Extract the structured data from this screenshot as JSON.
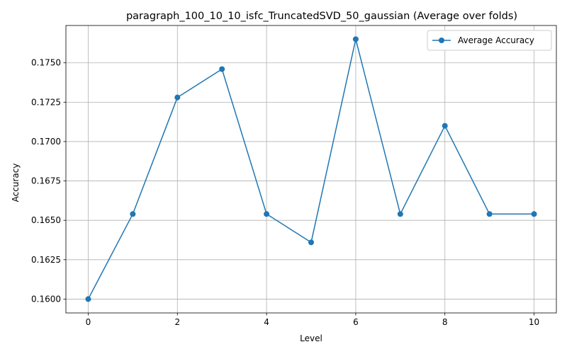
{
  "chart_data": {
    "type": "line",
    "title": "paragraph_100_10_10_isfc_TruncatedSVD_50_gaussian (Average over folds)",
    "xlabel": "Level",
    "ylabel": "Accuracy",
    "xlim": [
      -0.5,
      10.5
    ],
    "ylim": [
      0.15912,
      0.17737
    ],
    "xticks": [
      0,
      2,
      4,
      6,
      8,
      10
    ],
    "xtick_labels": [
      "0",
      "2",
      "4",
      "6",
      "8",
      "10"
    ],
    "yticks": [
      0.16,
      0.1625,
      0.165,
      0.1675,
      0.17,
      0.1725,
      0.175
    ],
    "ytick_labels": [
      "0.1600",
      "0.1625",
      "0.1650",
      "0.1675",
      "0.1700",
      "0.1725",
      "0.1750"
    ],
    "grid": true,
    "legend": "top-right",
    "series": [
      {
        "name": "Average Accuracy",
        "color": "#1f77b4",
        "marker": "circle",
        "x": [
          0,
          1,
          2,
          3,
          4,
          5,
          6,
          7,
          8,
          9,
          10
        ],
        "y": [
          0.16,
          0.1654,
          0.1728,
          0.1746,
          0.1654,
          0.1636,
          0.1765,
          0.1654,
          0.171,
          0.1654,
          0.1654
        ]
      }
    ]
  }
}
